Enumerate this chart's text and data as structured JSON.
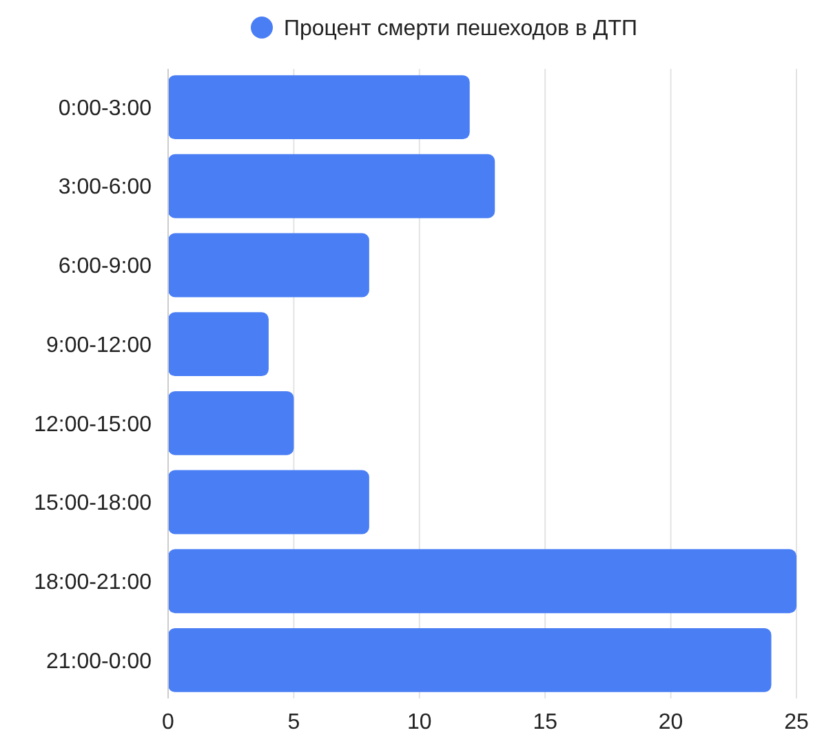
{
  "chart_data": {
    "type": "bar",
    "orientation": "horizontal",
    "categories": [
      "0:00-3:00",
      "3:00-6:00",
      "6:00-9:00",
      "9:00-12:00",
      "12:00-15:00",
      "15:00-18:00",
      "18:00-21:00",
      "21:00-0:00"
    ],
    "series": [
      {
        "name": "Процент смерти пешеходов в ДТП",
        "color": "#4a7ef5",
        "values": [
          12,
          13,
          8,
          4,
          5,
          8,
          25,
          24
        ]
      }
    ],
    "xlim": [
      0,
      25
    ],
    "xticks": [
      0,
      5,
      10,
      15,
      20,
      25
    ],
    "grid": "x",
    "legend": "top"
  }
}
